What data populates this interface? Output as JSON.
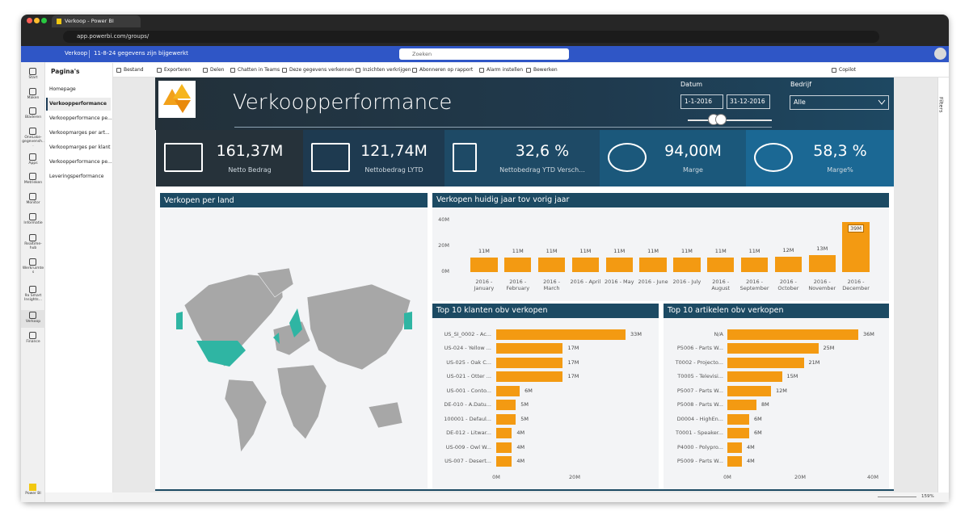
{
  "browser": {
    "tab_title": "Verkoop - Power BI",
    "url": "app.powerbi.com/groups/"
  },
  "app_bar": {
    "workspace": "Verkoop",
    "status": "11-8-24 gegevens zijn bijgewerkt",
    "search": "Zoeken"
  },
  "nav": [
    "Start",
    "Maken",
    "Bladeren",
    "OneLake-gegevensh...",
    "Apps",
    "Metrieken",
    "Monitor",
    "Informatie",
    "Realtime-hub",
    "Werkruimte s",
    "9a Smart Insights...",
    "Verkoop",
    "Finance",
    "Power BI"
  ],
  "toolbar": [
    "Bestand",
    "Exporteren",
    "Delen",
    "Chatten in Teams",
    "Deze gegevens verkennen",
    "Inzichten verkrijgen",
    "Abonneren op rapport",
    "Alarm instellen",
    "Bewerken",
    "Copilot"
  ],
  "pages": {
    "title": "Pagina's",
    "items": [
      "Homepage",
      "Verkoopperformance",
      "Verkoopperformance pe...",
      "Verkoopmarges per art...",
      "Verkoopmarges per klant",
      "Verkoopperformance pe...",
      "Leveringsperformance"
    ],
    "selected": 1
  },
  "report": {
    "title": "Verkoopperformance",
    "date_label": "Datum",
    "date_from": "1-1-2016",
    "date_to": "31-12-2016",
    "company_label": "Bedrijf",
    "company": "Alle",
    "kpis": [
      {
        "value": "161,37M",
        "label": "Netto Bedrag"
      },
      {
        "value": "121,74M",
        "label": "Nettobedrag LYTD"
      },
      {
        "value": "32,6 %",
        "label": "Nettobedrag YTD Versch..."
      },
      {
        "value": "94,00M",
        "label": "Marge"
      },
      {
        "value": "58,3 %",
        "label": "Marge%"
      }
    ],
    "map_title": "Verkopen per land"
  },
  "side_panel": "Filters",
  "zoom": "159%",
  "chart_data": [
    {
      "type": "bar",
      "title": "Verkopen huidig jaar tov vorig jaar",
      "categories": [
        "2016 - January",
        "2016 - February",
        "2016 - March",
        "2016 - April",
        "2016 - May",
        "2016 - June",
        "2016 - July",
        "2016 - August",
        "2016 - September",
        "2016 - October",
        "2016 - November",
        "2016 - December"
      ],
      "values": [
        11,
        11,
        11,
        11,
        11,
        11,
        11,
        11,
        11,
        12,
        13,
        39
      ],
      "value_labels": [
        "11M",
        "11M",
        "11M",
        "11M",
        "11M",
        "11M",
        "11M",
        "11M",
        "11M",
        "12M",
        "13M",
        "39M"
      ],
      "ylim": [
        0,
        40
      ],
      "yticks": [
        {
          "value": 0,
          "label": "0M"
        },
        {
          "value": 20,
          "label": "20M"
        },
        {
          "value": 40,
          "label": "40M"
        }
      ],
      "color": "#f39a12"
    },
    {
      "type": "hbar",
      "title": "Top 10  klanten obv verkopen",
      "categories": [
        "US_SI_0002 - Ac...",
        "US-024 - Yellow ...",
        "US-025 - Oak C...",
        "US-021 - Otter ...",
        "US-001 - Conto...",
        "DE-010 - A.Datu...",
        "100001 - Defaul...",
        "DE-012 - Litwar...",
        "US-009 - Owl W...",
        "US-007 - Desert..."
      ],
      "values": [
        33,
        17,
        17,
        17,
        6,
        5,
        5,
        4,
        4,
        4
      ],
      "value_labels": [
        "33M",
        "17M",
        "17M",
        "17M",
        "6M",
        "5M",
        "5M",
        "4M",
        "4M",
        "4M"
      ],
      "xlim": [
        0,
        38
      ],
      "xticks": [
        {
          "value": 0,
          "label": "0M"
        },
        {
          "value": 20,
          "label": "20M"
        }
      ],
      "color": "#f39a12"
    },
    {
      "type": "hbar",
      "title": "Top 10 artikelen obv verkopen",
      "categories": [
        "N/A",
        "P5006 - Parts W...",
        "T0002 - Projecto...",
        "T0005 - Televisi...",
        "P5007 - Parts W...",
        "P5008 - Parts W...",
        "D0004 - HighEn...",
        "T0001 - Speaker...",
        "P4000 - Polypro...",
        "P5009 - Parts W..."
      ],
      "values": [
        36,
        25,
        21,
        15,
        12,
        8,
        6,
        6,
        4,
        4
      ],
      "value_labels": [
        "36M",
        "25M",
        "21M",
        "15M",
        "12M",
        "8M",
        "6M",
        "6M",
        "4M",
        "4M"
      ],
      "xlim": [
        0,
        40
      ],
      "xticks": [
        {
          "value": 0,
          "label": "0M"
        },
        {
          "value": 20,
          "label": "20M"
        },
        {
          "value": 40,
          "label": "40M"
        }
      ],
      "color": "#f39a12"
    }
  ]
}
